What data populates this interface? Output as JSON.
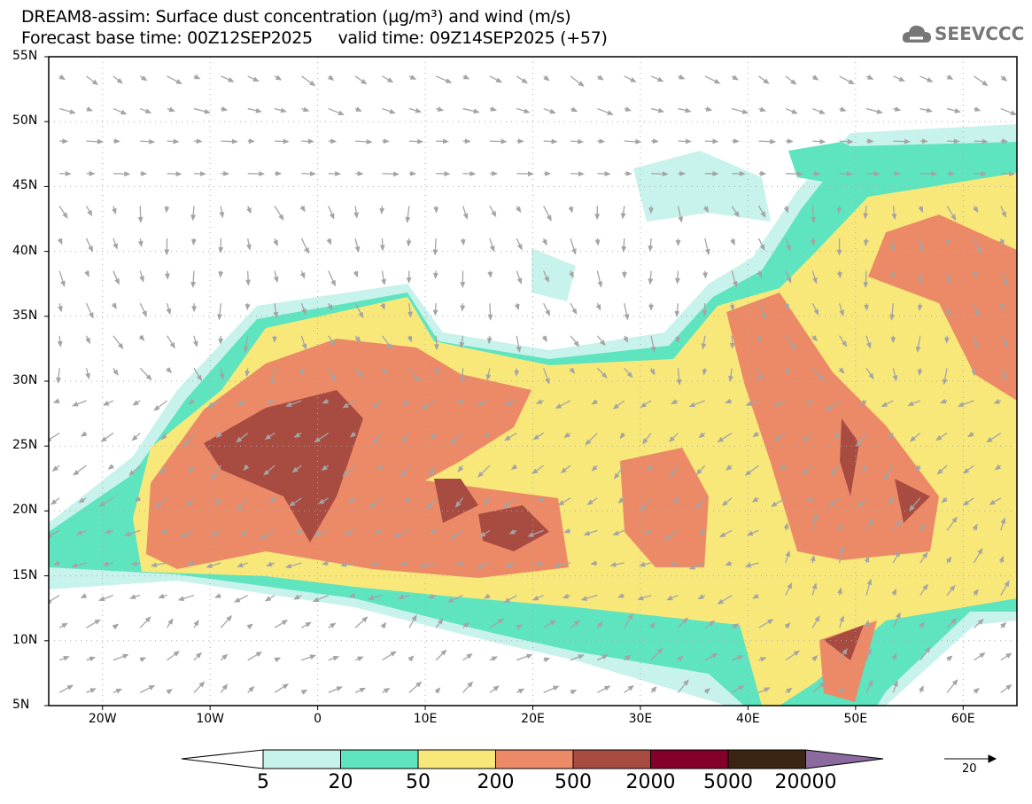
{
  "header": {
    "title": "DREAM8-assim: Surface dust concentration (µg/m³) and wind (m/s)",
    "subtitle": "Forecast base time: 00Z12SEP2025     valid time: 09Z14SEP2025 (+57)",
    "logo": "SEEVCCC"
  },
  "map": {
    "lat_labels": [
      "55N",
      "50N",
      "45N",
      "40N",
      "35N",
      "30N",
      "25N",
      "20N",
      "15N",
      "10N",
      "5N"
    ],
    "lon_labels": [
      "20W",
      "10W",
      "0",
      "10E",
      "20E",
      "30E",
      "40E",
      "50E",
      "60E"
    ],
    "lon_range": [
      -25,
      65
    ],
    "lat_range": [
      5,
      55
    ]
  },
  "colorbar": {
    "labels": [
      "5",
      "20",
      "50",
      "200",
      "500",
      "2000",
      "5000",
      "20000"
    ],
    "colors": [
      "#c8f2ec",
      "#5ee4be",
      "#f8e87a",
      "#ec8a68",
      "#a84c42",
      "#84002a",
      "#3c2412",
      "#8c6aa0"
    ]
  },
  "wind_reference": {
    "label": "20"
  }
}
